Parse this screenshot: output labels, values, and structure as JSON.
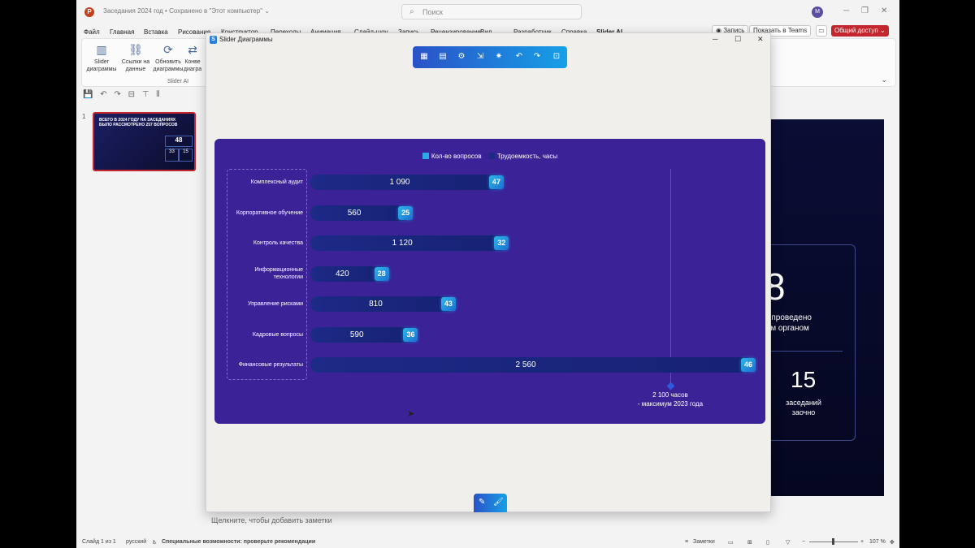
{
  "app": {
    "title": "Заседания 2024 год • Сохранено в \"Этот компьютер\" ⌄",
    "logo": "P",
    "search_placeholder": "Поиск",
    "avatar": "М"
  },
  "menu": [
    "Файл",
    "Главная",
    "Вставка",
    "Рисование",
    "Конструктор",
    "Переходы",
    "Анимация",
    "Слайд-шоу",
    "Запись",
    "Рецензирование",
    "Вид",
    "Разработчик",
    "Справка",
    "Slider AI"
  ],
  "header_buttons": {
    "record": "◉ Запись",
    "teams": "Показать в Teams",
    "share": "Общий доступ ⌄"
  },
  "ribbon": {
    "buttons": [
      {
        "label": "Slider диаграммы",
        "icon": "chart-icon"
      },
      {
        "label": "Ссылки на данные",
        "icon": "link-icon"
      },
      {
        "label": "Обновить диаграммы",
        "icon": "refresh-icon"
      },
      {
        "label": "Конве диагра",
        "icon": "convert-icon"
      }
    ],
    "group": "Slider AI"
  },
  "slide_panel": {
    "number": "1",
    "thumb_text": "ВСЕГО В 2024 ГОДУ НА ЗАСЕДАНИЯХ БЫЛО РАССМОТРЕНО 257 ВОПРОСОВ",
    "thumb_big": "48",
    "thumb_box1": "33",
    "thumb_box2": "15"
  },
  "slide": {
    "big_number": "8",
    "line1": "о проведено",
    "line2": "ым органом",
    "num2": "15",
    "zline1": "заседаний",
    "zline2": "заочно"
  },
  "notes_placeholder": "Щелкните, чтобы добавить заметки",
  "status": {
    "slide": "Слайд 1 из 1",
    "lang": "русский",
    "accessibility": "Специальные возможности: проверьте рекомендации",
    "notes": "Заметки",
    "zoom": "107 %"
  },
  "dialog": {
    "title": "Slider Диаграммы"
  },
  "colors": {
    "chart_bg": "#3b2296",
    "bar": "#1d2a86",
    "badge": "#2fb6e9",
    "share": "#c4262e"
  },
  "chart_data": {
    "type": "bar",
    "orientation": "horizontal",
    "title": "",
    "legend": [
      "Кол-во вопросов",
      "Трудоемкость, часы"
    ],
    "categories": [
      "Комплексный аудит",
      "Корпоративное обучение",
      "Контроль качества",
      "Информационные технологии",
      "Управление рисками",
      "Кадровые вопросы",
      "Финансовые результаты"
    ],
    "category_lines": [
      [
        "Комплексный аудит"
      ],
      [
        "Корпоративное обучение"
      ],
      [
        "Контроль качества"
      ],
      [
        "Информационные",
        "технологии"
      ],
      [
        "Управление рисками"
      ],
      [
        "Кадровые вопросы"
      ],
      [
        "Финансовые результаты"
      ]
    ],
    "series": [
      {
        "name": "Трудоемкость, часы",
        "values": [
          1090,
          560,
          1120,
          420,
          810,
          590,
          2560
        ],
        "labels": [
          "1 090",
          "560",
          "1 120",
          "420",
          "810",
          "590",
          "2 560"
        ]
      },
      {
        "name": "Кол-во вопросов",
        "values": [
          47,
          25,
          32,
          28,
          43,
          36,
          46
        ]
      }
    ],
    "reference_line": {
      "value": 2100,
      "label_line1": "2 100 часов",
      "label_line2": "- максимум 2023 года"
    },
    "xlim": [
      0,
      2560
    ]
  }
}
